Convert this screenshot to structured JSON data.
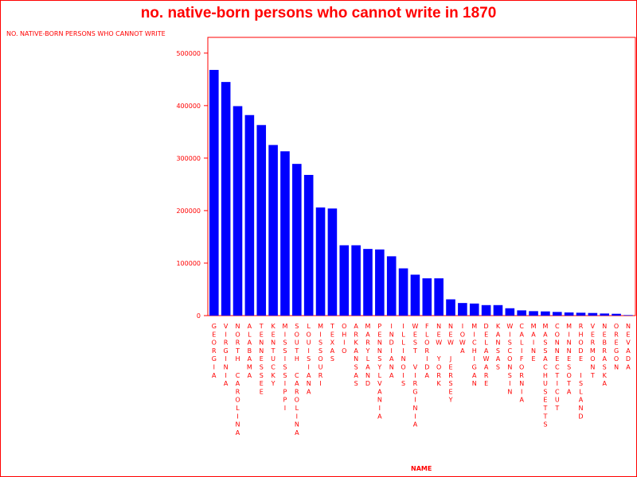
{
  "colors": {
    "bar": "#0000ff",
    "text": "#ff0000"
  },
  "chart_data": {
    "type": "bar",
    "title": "no. native-born persons who cannot write in 1870",
    "ylabel": "NO. NATIVE-BORN PERSONS WHO CANNOT WRITE",
    "xlabel": "NAME",
    "ylim": [
      0,
      530000
    ],
    "yticks": [
      0,
      100000,
      200000,
      300000,
      400000,
      500000
    ],
    "categories": [
      "GEORGIA",
      "VIRGINIA",
      "NORTH CAROLINA",
      "ALABAMA",
      "TENNESSEE",
      "KENTUCKY",
      "MISSISSIPPI",
      "SOUTH CAROLINA",
      "LOUISIANA",
      "MISSOURI",
      "TEXAS",
      "OHIO",
      "ARKANSAS",
      "MARYLAND",
      "PENNSYLVANIA",
      "INDIANA",
      "ILLINOIS",
      "WEST VIRGINIA",
      "FLORIDA",
      "NEW YORK",
      "NEW JERSEY",
      "IOWA",
      "MICHIGAN",
      "DELAWARE",
      "KANSAS",
      "WISCONSIN",
      "CALIFORNIA",
      "MAINE",
      "MASSACHUSETTS",
      "CONNECTICUT",
      "MINNESOTA",
      "RHODE ISLAND",
      "VERMONT",
      "NEBRASKA",
      "OREGON",
      "NEVADA"
    ],
    "values": [
      468000,
      445000,
      399000,
      382000,
      363000,
      325000,
      313000,
      289000,
      268000,
      206000,
      204000,
      134000,
      134000,
      127000,
      126000,
      113000,
      90000,
      78000,
      71000,
      71000,
      31000,
      24000,
      23000,
      20000,
      20000,
      14000,
      10000,
      8500,
      8000,
      7000,
      6000,
      5500,
      5000,
      4000,
      3500,
      1000
    ]
  }
}
